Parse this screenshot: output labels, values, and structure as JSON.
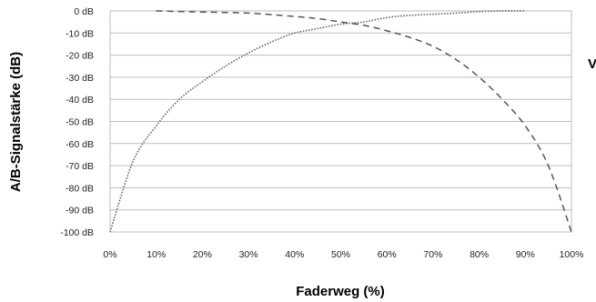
{
  "chart_data": {
    "type": "line",
    "title": "",
    "xlabel": "Faderweg (%)",
    "ylabel": "A/B-Signalstärke (dB)",
    "xlim": [
      0,
      100
    ],
    "ylim": [
      -100,
      0
    ],
    "x_ticks": [
      "0%",
      "10%",
      "20%",
      "30%",
      "40%",
      "50%",
      "60%",
      "70%",
      "80%",
      "90%",
      "100%"
    ],
    "y_ticks": [
      "0 dB",
      "-10 dB",
      "-20 dB",
      "-30 dB",
      "-40 dB",
      "-50 dB",
      "-60 dB",
      "-70 dB",
      "-80 dB",
      "-90 dB",
      "-100 dB"
    ],
    "grid": true,
    "legend": "none",
    "series": [
      {
        "style": "dotted",
        "color": "#6a6a6a",
        "x": [
          0,
          5,
          10,
          15,
          20,
          25,
          30,
          35,
          40,
          45,
          50,
          55,
          60,
          65,
          70,
          75,
          80,
          85,
          90
        ],
        "y": [
          -100,
          -68,
          -52,
          -40,
          -32,
          -25,
          -19,
          -14,
          -10,
          -8,
          -6,
          -5,
          -3,
          -2,
          -1.5,
          -1,
          -0.3,
          0,
          0
        ]
      },
      {
        "style": "dashed",
        "color": "#555555",
        "x": [
          10,
          20,
          30,
          40,
          45,
          50,
          55,
          60,
          65,
          70,
          75,
          80,
          85,
          90,
          95,
          100
        ],
        "y": [
          0,
          -0.5,
          -1,
          -2.5,
          -3.5,
          -5,
          -6.5,
          -9,
          -12,
          -16,
          -22,
          -30,
          -40,
          -52,
          -70,
          -100
        ]
      }
    ]
  },
  "page": {
    "edge_text": "V"
  }
}
